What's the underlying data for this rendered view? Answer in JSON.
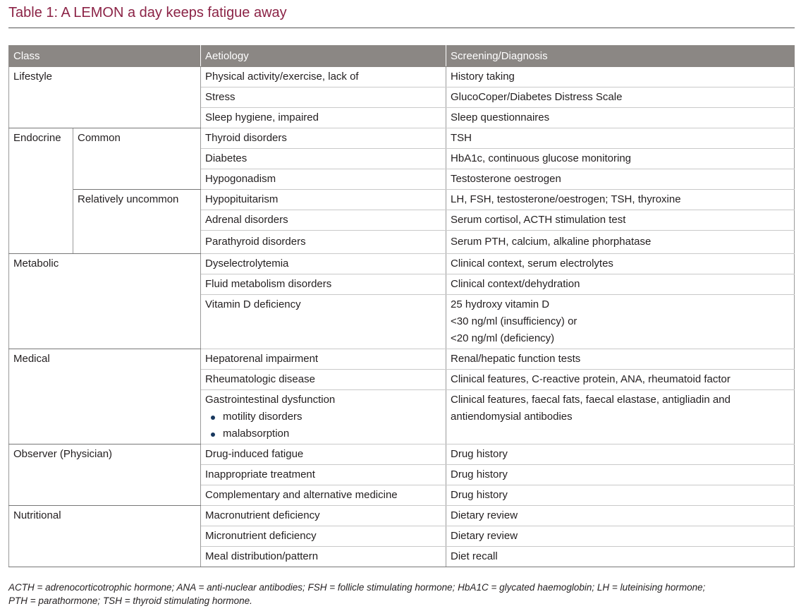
{
  "title": "Table 1: A LEMON a day keeps fatigue away",
  "table": {
    "headers": [
      "Class",
      "Aetiology",
      "Screening/Diagnosis"
    ],
    "lifestyle": {
      "class": "Lifestyle",
      "rows": [
        [
          "Physical activity/exercise, lack of",
          "History taking"
        ],
        [
          "Stress",
          "GlucoCoper/Diabetes Distress Scale"
        ],
        [
          "Sleep hygiene, impaired",
          "Sleep questionnaires"
        ]
      ]
    },
    "endocrine": {
      "class": "Endocrine",
      "common": {
        "label": "Common",
        "rows": [
          [
            "Thyroid disorders",
            "TSH"
          ],
          [
            "Diabetes",
            "HbA1c, continuous glucose monitoring"
          ],
          [
            "Hypogonadism",
            "Testosterone oestrogen"
          ]
        ]
      },
      "uncommon": {
        "label": "Relatively uncommon",
        "rows": [
          [
            "Hypopituitarism",
            "LH, FSH, testosterone/oestrogen; TSH, thyroxine"
          ],
          [
            "Adrenal disorders",
            "Serum cortisol, ACTH stimulation test"
          ],
          [
            "Parathyroid disorders",
            "Serum PTH, calcium, alkaline phorphatase"
          ]
        ]
      }
    },
    "metabolic": {
      "class": "Metabolic",
      "rows": [
        [
          "Dyselectrolytemia",
          "Clinical context, serum electrolytes"
        ],
        [
          "Fluid metabolism disorders",
          "Clinical context/dehydration"
        ]
      ],
      "vitd": {
        "aetiology": "Vitamin D deficiency",
        "lines": [
          "25 hydroxy vitamin D",
          "<30 ng/ml (insufficiency) or",
          "<20 ng/ml (deficiency)"
        ]
      }
    },
    "medical": {
      "class": "Medical",
      "rows": [
        [
          "Hepatorenal impairment",
          "Renal/hepatic function tests"
        ],
        [
          "Rheumatologic disease",
          "Clinical features, C-reactive protein, ANA, rheumatoid factor"
        ]
      ],
      "gi": {
        "aetiology": "Gastrointestinal dysfunction",
        "bullets": [
          "motility disorders",
          "malabsorption"
        ],
        "lines": [
          "Clinical features, faecal fats, faecal elastase, antigliadin and",
          "antiendomysial antibodies"
        ]
      }
    },
    "observer": {
      "class": "Observer (Physician)",
      "rows": [
        [
          "Drug-induced fatigue",
          "Drug history"
        ],
        [
          "Inappropriate treatment",
          "Drug history"
        ],
        [
          "Complementary and alternative medicine",
          "Drug history"
        ]
      ]
    },
    "nutritional": {
      "class": "Nutritional",
      "rows": [
        [
          "Macronutrient deficiency",
          "Dietary review"
        ],
        [
          "Micronutrient deficiency",
          "Dietary review"
        ],
        [
          "Meal distribution/pattern",
          "Diet recall"
        ]
      ]
    }
  },
  "footnote": {
    "line1": "ACTH = adrenocorticotrophic hormone; ANA = anti-nuclear antibodies; FSH = follicle stimulating hormone; HbA1C = glycated haemoglobin; LH = luteinising hormone;",
    "line2": "PTH = parathormone; TSH = thyroid stimulating hormone."
  }
}
